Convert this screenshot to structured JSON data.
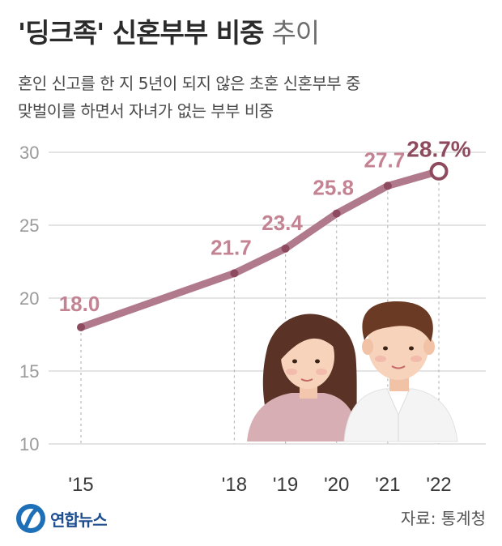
{
  "header": {
    "title": "'딩크족' 신혼부부 비중",
    "title_suffix": "추이",
    "subtitle_line1": "혼인 신고를 한 지 5년이 되지 않은 초혼 신혼부부 중",
    "subtitle_line2": "맞벌이를 하면서 자녀가 없는 부부 비중"
  },
  "footer": {
    "logo_text": "연합뉴스",
    "source": "자료: 통계청"
  },
  "colors": {
    "line": "#b07a8c",
    "label": "#c48393",
    "last_label": "#8e4a5e",
    "grid": "#dcdcdc",
    "tick": "#9a9a9a"
  },
  "chart_data": {
    "type": "line",
    "title": "'딩크족' 신혼부부 비중 추이",
    "x": [
      "'15",
      "'18",
      "'19",
      "'20",
      "'21",
      "'22"
    ],
    "x_values": [
      2015,
      2018,
      2019,
      2020,
      2021,
      2022
    ],
    "series": [
      {
        "values": [
          18.0,
          21.7,
          23.4,
          25.8,
          27.7,
          28.7
        ]
      }
    ],
    "data_labels": [
      "18.0",
      "21.7",
      "23.4",
      "25.8",
      "27.7",
      "28.7%"
    ],
    "yticks": [
      10,
      15,
      20,
      25,
      30
    ],
    "ylim": [
      10,
      30
    ],
    "xlim": [
      2015,
      2022
    ],
    "grid": true,
    "unit": "%"
  }
}
